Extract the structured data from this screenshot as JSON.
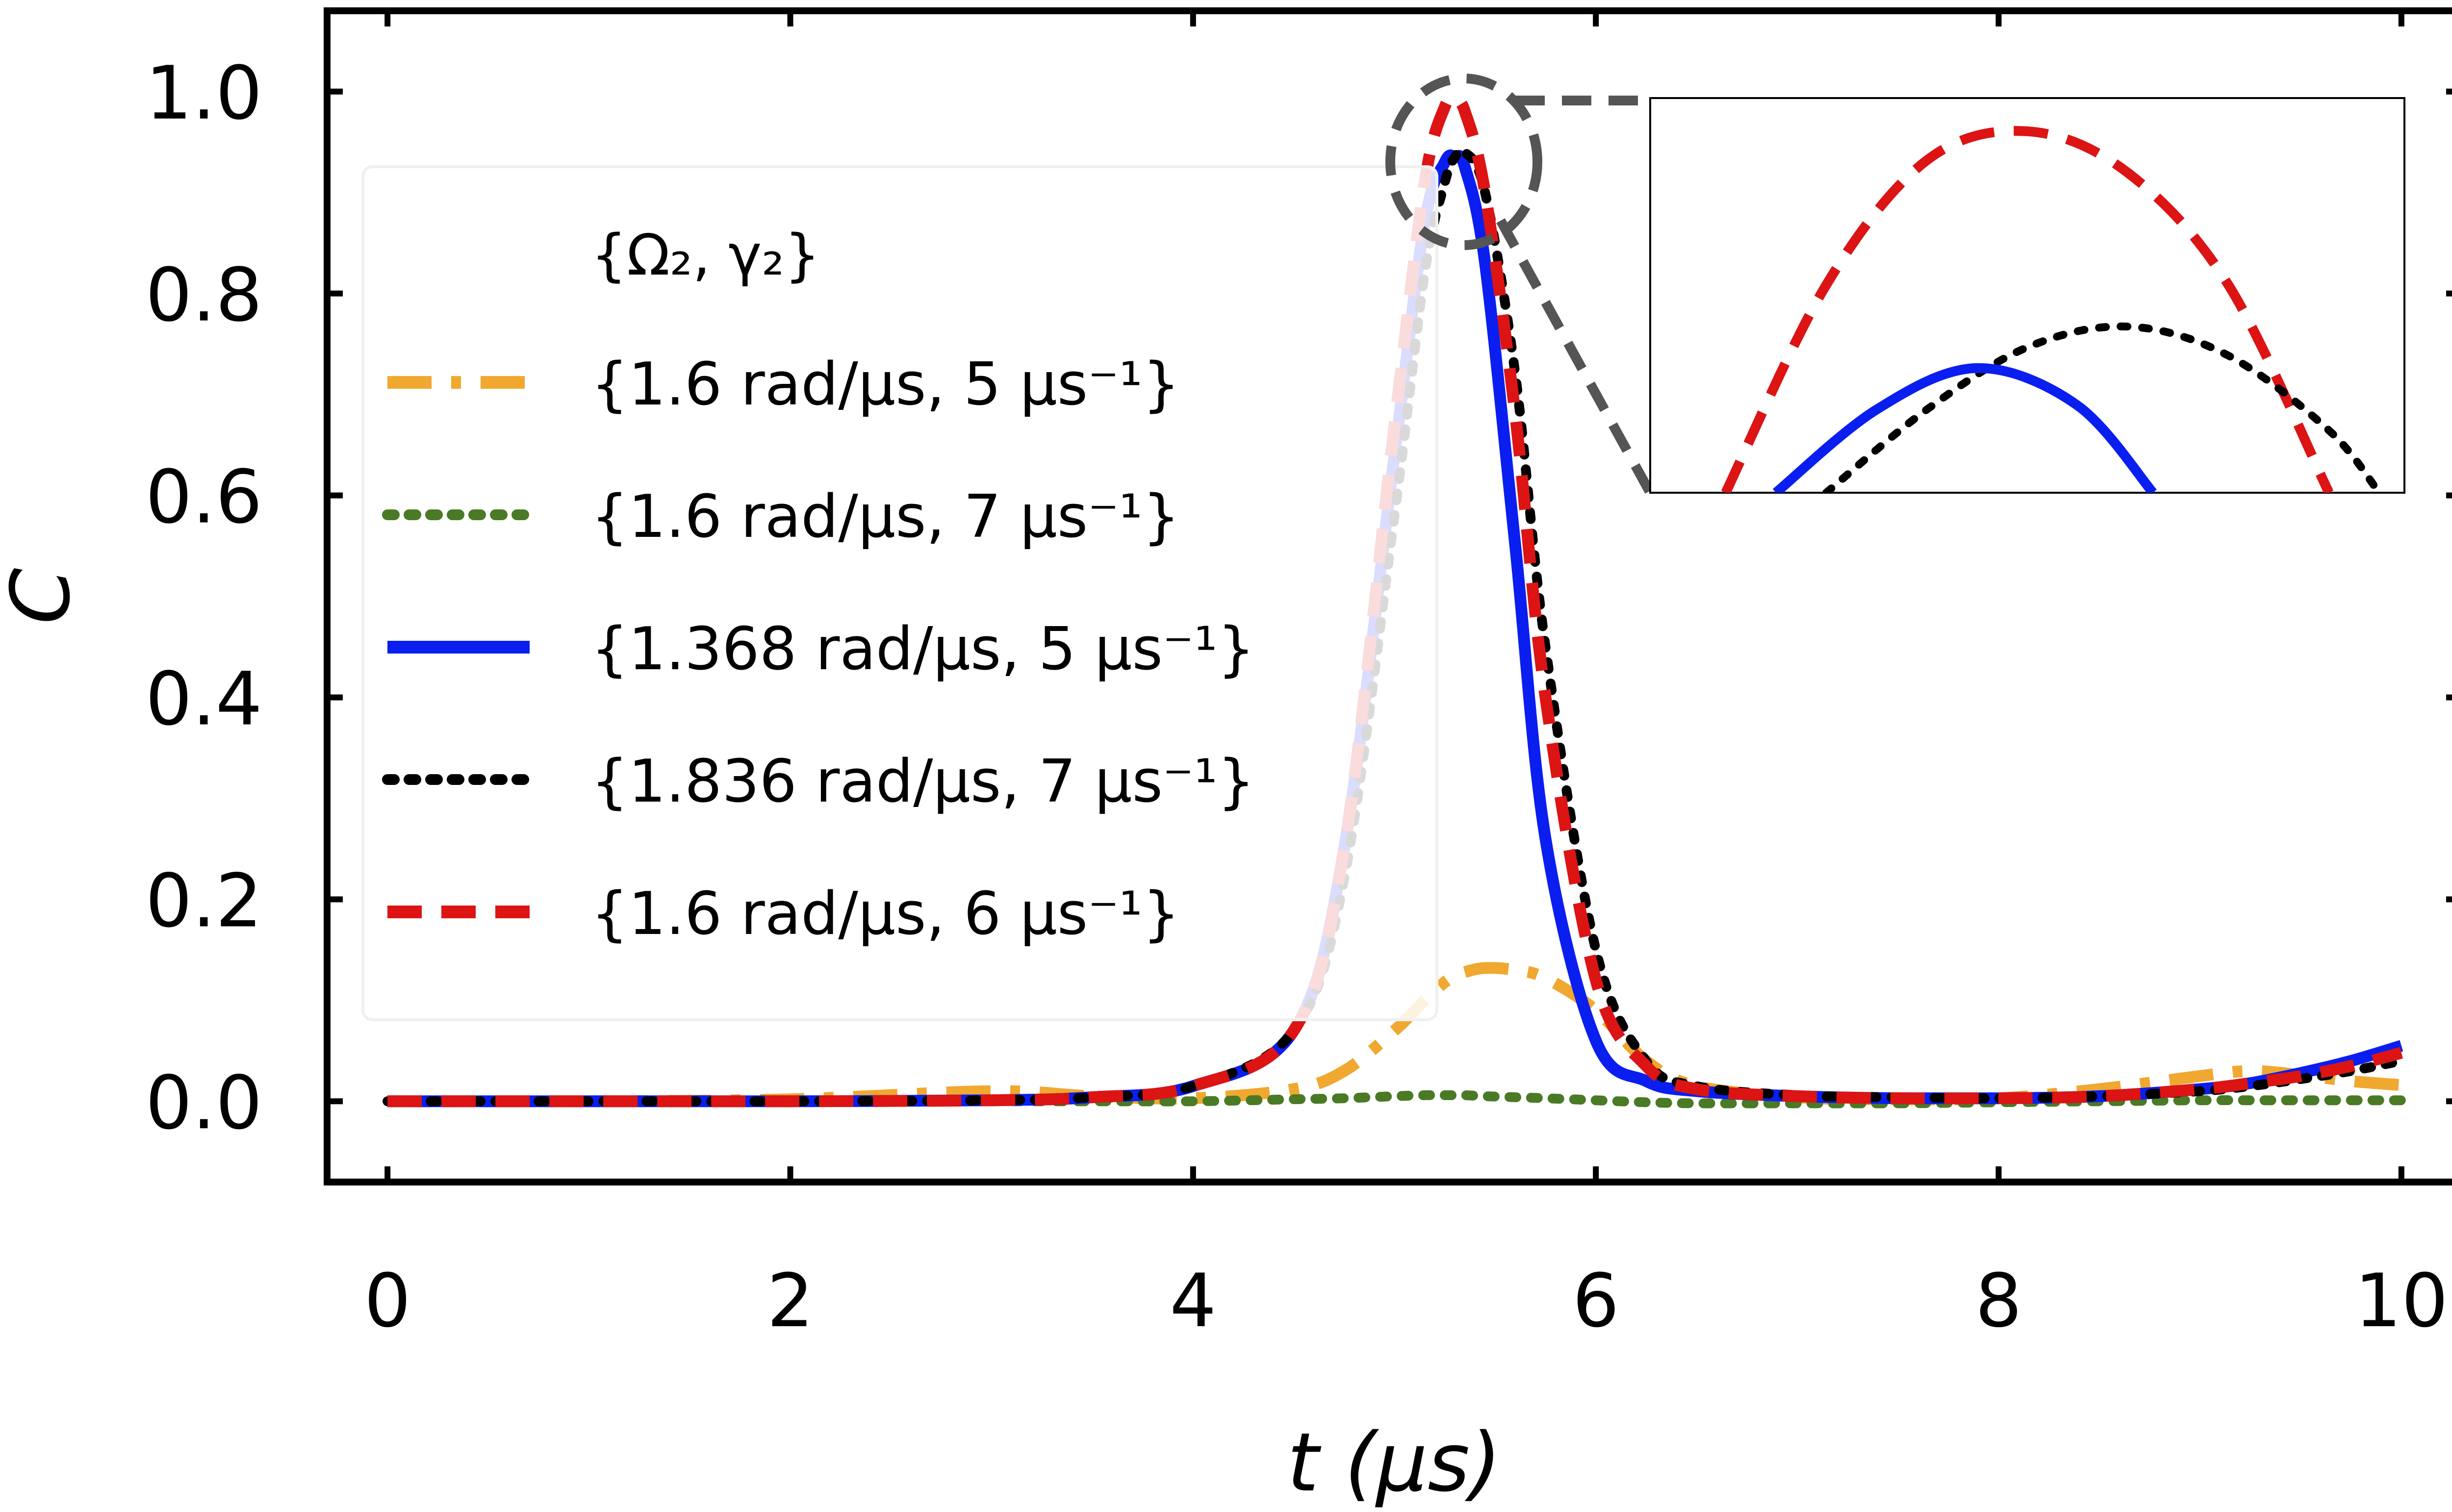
{
  "chart_data": {
    "type": "line",
    "title": "",
    "xlabel": "t (µs)",
    "ylabel": "C",
    "xlim": [
      -0.3,
      10.3
    ],
    "ylim": [
      -0.08,
      1.08
    ],
    "xticks": [
      0,
      2,
      4,
      6,
      8,
      10
    ],
    "yticks": [
      0.0,
      0.2,
      0.4,
      0.6,
      0.8,
      1.0
    ],
    "xtick_labels": [
      "0",
      "2",
      "4",
      "6",
      "8",
      "10"
    ],
    "ytick_labels": [
      "0.0",
      "0.2",
      "0.4",
      "0.6",
      "0.8",
      "1.0"
    ],
    "grid": false,
    "legend_placement": "upper-left",
    "legend_title": "{Ω₂, γ₂}",
    "x": [
      0,
      1,
      2,
      3,
      3.5,
      4,
      4.5,
      4.75,
      5,
      5.15,
      5.25,
      5.3,
      5.35,
      5.45,
      5.6,
      5.75,
      6,
      6.25,
      6.5,
      7,
      7.5,
      8,
      8.5,
      9,
      9.25,
      9.5,
      9.75,
      10
    ],
    "series": [
      {
        "name": "{1.6 rad/µs, 5 µs⁻¹}",
        "color": "#f0a830",
        "style": "dashdot",
        "values": [
          0.0,
          0.0,
          0.002,
          0.01,
          0.005,
          0.003,
          0.012,
          0.03,
          0.07,
          0.1,
          0.118,
          0.124,
          0.128,
          0.132,
          0.13,
          0.122,
          0.09,
          0.04,
          0.015,
          0.004,
          0.002,
          0.003,
          0.012,
          0.025,
          0.03,
          0.026,
          0.02,
          0.016
        ]
      },
      {
        "name": "{1.6 rad/µs, 7 µs⁻¹}",
        "color": "#4a7a25",
        "style": "dotted",
        "values": [
          0.0,
          0.0,
          0.0,
          0.0,
          0.0,
          0.0,
          0.002,
          0.003,
          0.005,
          0.006,
          0.006,
          0.006,
          0.006,
          0.005,
          0.004,
          0.003,
          0.001,
          -0.001,
          -0.002,
          -0.002,
          -0.002,
          -0.001,
          0.0,
          0.001,
          0.001,
          0.001,
          0.001,
          0.001
        ]
      },
      {
        "name": "{1.368 rad/µs, 5 µs⁻¹}",
        "color": "#0a1ef0",
        "style": "solid",
        "values": [
          0.0,
          0.0,
          0.0,
          0.001,
          0.004,
          0.015,
          0.07,
          0.25,
          0.64,
          0.87,
          0.93,
          0.935,
          0.925,
          0.83,
          0.55,
          0.26,
          0.06,
          0.02,
          0.01,
          0.005,
          0.003,
          0.003,
          0.005,
          0.012,
          0.018,
          0.028,
          0.04,
          0.055
        ]
      },
      {
        "name": "{1.836 rad/µs, 7 µs⁻¹}",
        "color": "#000000",
        "style": "dotted",
        "values": [
          0.0,
          0.0,
          0.0,
          0.001,
          0.004,
          0.015,
          0.07,
          0.22,
          0.58,
          0.82,
          0.91,
          0.935,
          0.94,
          0.9,
          0.72,
          0.45,
          0.15,
          0.04,
          0.015,
          0.006,
          0.004,
          0.003,
          0.005,
          0.01,
          0.015,
          0.022,
          0.03,
          0.04
        ]
      },
      {
        "name": "{1.6 rad/µs, 6 µs⁻¹}",
        "color": "#dc1414",
        "style": "dashed",
        "values": [
          0.0,
          0.0,
          0.0,
          0.001,
          0.004,
          0.015,
          0.07,
          0.25,
          0.67,
          0.91,
          0.985,
          0.99,
          0.98,
          0.9,
          0.68,
          0.4,
          0.12,
          0.035,
          0.012,
          0.005,
          0.003,
          0.003,
          0.005,
          0.012,
          0.018,
          0.025,
          0.035,
          0.048
        ]
      }
    ],
    "inset": {
      "description": "zoom on the peak near t≈5.3 µs",
      "xlim": [
        5.15,
        5.45
      ],
      "ylim": [
        0.905,
        1.0
      ],
      "series": [
        {
          "name": "{1.6 rad/µs, 6 µs⁻¹}",
          "x": [
            5.18,
            5.22,
            5.26,
            5.3,
            5.34,
            5.38,
            5.42
          ],
          "values": [
            0.905,
            0.955,
            0.985,
            0.992,
            0.982,
            0.955,
            0.905
          ]
        },
        {
          "name": "{1.836 rad/µs, 7 µs⁻¹}",
          "x": [
            5.22,
            5.26,
            5.3,
            5.34,
            5.38,
            5.42,
            5.44
          ],
          "values": [
            0.905,
            0.925,
            0.94,
            0.945,
            0.938,
            0.92,
            0.905
          ]
        },
        {
          "name": "{1.368 rad/µs, 5 µs⁻¹}",
          "x": [
            5.2,
            5.24,
            5.28,
            5.32,
            5.35
          ],
          "values": [
            0.905,
            0.925,
            0.935,
            0.926,
            0.905
          ]
        }
      ]
    }
  }
}
